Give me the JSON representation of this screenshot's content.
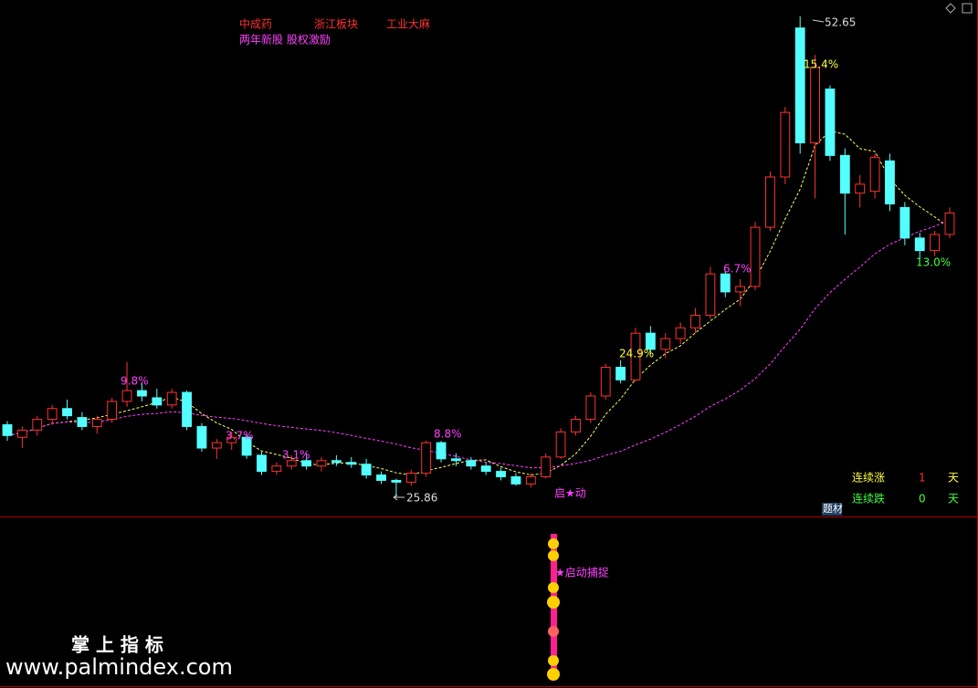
{
  "chart_data": {
    "type": "candlestick",
    "tags": [
      "中成药",
      "浙江板块",
      "工业大麻"
    ],
    "concepts": "两年新股 股权激励",
    "open": [
      29.9,
      29.2,
      29.6,
      30.2,
      30.8,
      30.3,
      29.8,
      30.2,
      31.2,
      31.8,
      31.4,
      31.0,
      31.7,
      29.8,
      28.6,
      28.9,
      29.2,
      28.2,
      27.3,
      27.6,
      27.9,
      27.6,
      27.9,
      27.8,
      27.7,
      27.1,
      26.8,
      26.7,
      27.2,
      28.9,
      28.0,
      27.9,
      27.6,
      27.3,
      27.0,
      26.6,
      27.0,
      28.1,
      29.5,
      30.2,
      31.5,
      33.1,
      32.4,
      35.0,
      34.1,
      34.7,
      35.3,
      36.0,
      38.3,
      37.3,
      37.6,
      40.9,
      43.7,
      52.0,
      45.6,
      48.6,
      44.9,
      42.8,
      42.9,
      44.6,
      42.0,
      40.3,
      39.6,
      40.5
    ],
    "high": [
      30.1,
      29.8,
      30.4,
      31.0,
      31.3,
      30.6,
      30.4,
      31.4,
      33.4,
      32.2,
      31.9,
      31.9,
      31.8,
      30.0,
      29.1,
      29.5,
      29.4,
      28.4,
      27.8,
      28.2,
      28.3,
      28.1,
      28.2,
      28.1,
      28.0,
      27.3,
      26.9,
      27.4,
      29.0,
      29.0,
      28.3,
      28.1,
      27.8,
      27.5,
      27.2,
      27.2,
      28.3,
      29.7,
      30.4,
      31.7,
      33.3,
      33.5,
      35.3,
      35.4,
      35.0,
      35.6,
      36.4,
      38.7,
      38.5,
      38.0,
      41.2,
      44.0,
      47.6,
      52.65,
      50.5,
      48.8,
      45.3,
      43.8,
      45.0,
      45.0,
      42.3,
      40.6,
      40.7,
      42.0
    ],
    "low": [
      29.0,
      28.6,
      29.3,
      29.9,
      30.2,
      29.6,
      29.4,
      30.0,
      30.9,
      31.2,
      30.8,
      30.8,
      29.6,
      28.4,
      28.0,
      28.5,
      28.0,
      27.1,
      27.1,
      27.4,
      27.4,
      27.3,
      27.6,
      27.5,
      26.9,
      26.6,
      25.86,
      26.5,
      27.0,
      27.8,
      27.6,
      27.4,
      27.1,
      26.8,
      26.5,
      26.4,
      26.9,
      28.0,
      29.3,
      30.0,
      31.3,
      32.2,
      32.3,
      33.8,
      33.6,
      34.4,
      35.0,
      35.8,
      37.0,
      36.5,
      37.4,
      40.7,
      43.3,
      45.0,
      42.5,
      44.6,
      40.5,
      42.0,
      42.5,
      41.8,
      39.9,
      39.1,
      39.3,
      40.3
    ],
    "close": [
      29.3,
      29.6,
      30.2,
      30.8,
      30.4,
      29.8,
      30.2,
      31.2,
      31.8,
      31.5,
      31.0,
      31.7,
      29.8,
      28.6,
      28.9,
      29.2,
      28.2,
      27.3,
      27.6,
      27.9,
      27.6,
      27.9,
      27.8,
      27.7,
      27.1,
      26.8,
      26.7,
      27.2,
      28.9,
      28.0,
      27.9,
      27.6,
      27.3,
      27.0,
      26.6,
      27.0,
      28.1,
      29.5,
      30.2,
      31.5,
      33.1,
      32.4,
      35.0,
      34.1,
      34.7,
      35.3,
      36.0,
      38.3,
      37.3,
      37.6,
      40.9,
      43.7,
      47.3,
      45.6,
      49.8,
      44.9,
      42.8,
      43.3,
      44.8,
      42.2,
      40.3,
      39.6,
      40.5,
      41.7
    ],
    "up_color": "#ff3232",
    "down_color": "#54ffff",
    "ylim": [
      24.79,
      53.56
    ],
    "max_label": 52.65,
    "min_label": 25.86,
    "annotations": [
      "15.4%",
      "9.8%",
      "3.7%",
      "3.1%",
      "8.8%",
      "24.9%",
      "6.7%",
      "13.0%"
    ],
    "start_label": "启★动",
    "badge": "题材",
    "streaks": [
      {
        "label": "连续涨",
        "days": 1,
        "unit": "天"
      },
      {
        "label": "连续跌",
        "days": 0,
        "unit": "天"
      }
    ],
    "signal_text": "★启动捕捉",
    "watermark": {
      "title": "掌 上 指 标",
      "url": "www.palmindex.com"
    }
  }
}
